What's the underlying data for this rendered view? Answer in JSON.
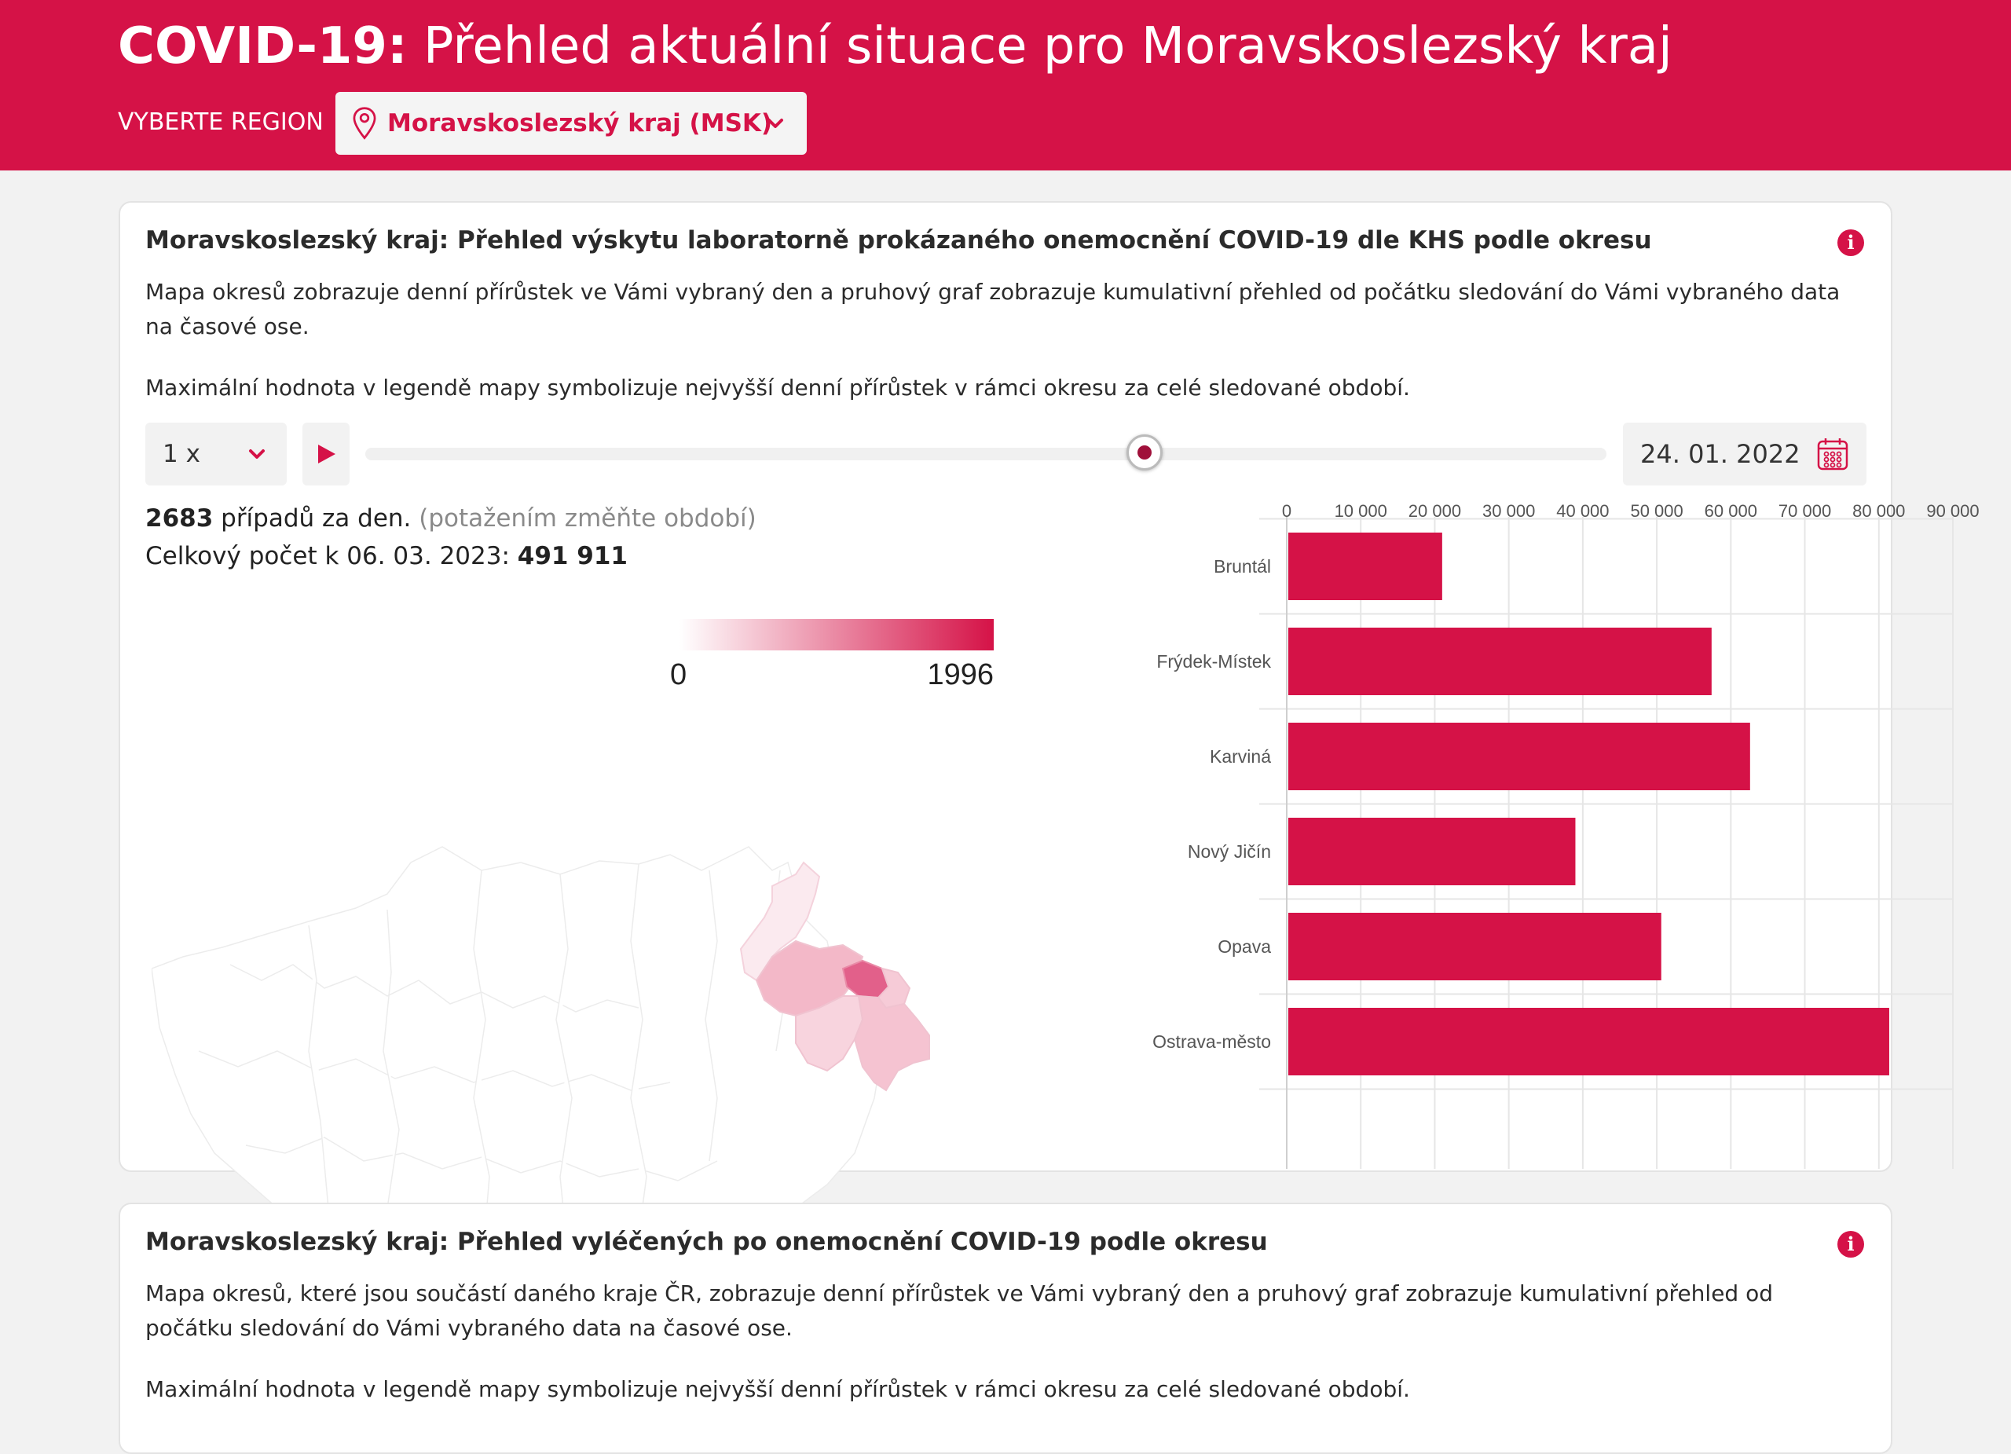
{
  "header": {
    "title_bold": "COVID-19:",
    "title_rest": " Přehled aktuální situace pro Moravskoslezský kraj",
    "region_label": "VYBERTE REGION",
    "region_value": "Moravskoslezský kraj (MSK)"
  },
  "card1": {
    "title": "Moravskoslezský kraj: Přehled výskytu laboratorně prokázaného onemocnění COVID-19 dle KHS podle okresu",
    "desc1": "Mapa okresů zobrazuje denní přírůstek ve Vámi vybraný den a pruhový graf zobrazuje kumulativní přehled od počátku sledování do Vámi vybraného data na časové ose.",
    "desc2": "Maximální hodnota v legendě mapy symbolizuje nejvyšší denní přírůstek v rámci okresu za celé sledované období.",
    "speed": "1 x",
    "slider_fraction": 0.628,
    "date": "24. 01. 2022",
    "cases_value": "2683",
    "cases_text": " případů za den.",
    "cases_hint": "(potažením změňte období)",
    "total_text": "Celkový počet k 06. 03. 2023:",
    "total_value": "491 911",
    "legend_min": "0",
    "legend_max": "1996"
  },
  "card2": {
    "title": "Moravskoslezský kraj: Přehled vyléčených po onemocnění COVID-19 podle okresu",
    "desc1": "Mapa okresů, které jsou součástí daného kraje ČR, zobrazuje denní přírůstek ve Vámi vybraný den a pruhový graf zobrazuje kumulativní přehled od počátku sledování do Vámi vybraného data na časové ose.",
    "desc2": "Maximální hodnota v legendě mapy symbolizuje nejvyšší denní přírůstek v rámci okresu za celé sledované období."
  },
  "colors": {
    "brand": "#d51247",
    "background": "#f2f2f2"
  },
  "chart_data": {
    "type": "bar",
    "orientation": "horizontal",
    "categories": [
      "Bruntál",
      "Frýdek-Místek",
      "Karviná",
      "Nový Jičín",
      "Opava",
      "Ostrava-město"
    ],
    "values": [
      21000,
      57400,
      62600,
      39000,
      50600,
      81400
    ],
    "xlim": [
      0,
      90000
    ],
    "xticks": [
      "0",
      "10 000",
      "20 000",
      "30 000",
      "40 000",
      "50 000",
      "60 000",
      "70 000",
      "80 000",
      "90 000"
    ],
    "grid": true,
    "color": "#d51247"
  }
}
